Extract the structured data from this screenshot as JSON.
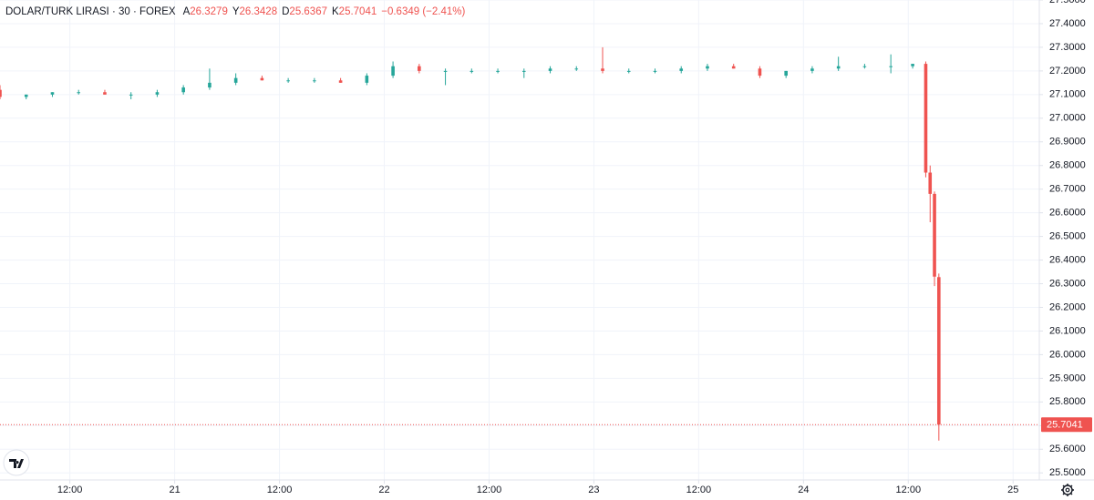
{
  "chart_data": {
    "type": "candlestick",
    "title": "DOLAR/TURK LIRASI · 30 · FOREX",
    "ohlc_legend": [
      {
        "label": "A",
        "value": 26.3279
      },
      {
        "label": "Y",
        "value": 26.3428
      },
      {
        "label": "D",
        "value": 25.6367
      },
      {
        "label": "K",
        "value": 25.7041
      }
    ],
    "change": "−0.6349 (−2.41%)",
    "up_color": "#26a69a",
    "down_color": "#ef5350",
    "x": [
      4,
      7,
      10,
      13,
      16,
      19,
      22,
      25,
      28,
      31,
      34,
      37,
      40,
      43,
      46,
      49,
      52,
      55,
      58,
      61,
      64,
      67,
      70,
      73,
      76,
      79,
      82,
      85,
      88,
      91,
      94,
      97,
      100,
      103,
      106,
      108.5,
      110,
      110.5,
      111,
      111.5
    ],
    "open": [
      27.12,
      27.09,
      27.1,
      27.11,
      27.11,
      27.1,
      27.1,
      27.11,
      27.13,
      27.15,
      27.17,
      27.16,
      27.16,
      27.16,
      27.15,
      27.18,
      27.22,
      27.2,
      27.2,
      27.2,
      27.2,
      27.2,
      27.21,
      27.21,
      27.2,
      27.2,
      27.2,
      27.21,
      27.22,
      27.21,
      27.18,
      27.2,
      27.21,
      27.22,
      27.22,
      27.22,
      27.23,
      26.77,
      26.68,
      26.3279
    ],
    "high": [
      27.14,
      27.1,
      27.11,
      27.12,
      27.12,
      27.11,
      27.12,
      27.14,
      27.21,
      27.19,
      27.18,
      27.17,
      27.17,
      27.17,
      27.19,
      27.24,
      27.23,
      27.21,
      27.21,
      27.21,
      27.21,
      27.22,
      27.22,
      27.3,
      27.21,
      27.21,
      27.22,
      27.23,
      27.23,
      27.22,
      27.2,
      27.22,
      27.26,
      27.23,
      27.27,
      27.23,
      27.24,
      26.8,
      26.69,
      26.3428
    ],
    "low": [
      27.08,
      27.08,
      27.09,
      27.1,
      27.1,
      27.08,
      27.09,
      27.1,
      27.12,
      27.14,
      27.16,
      27.15,
      27.15,
      27.15,
      27.14,
      27.17,
      27.19,
      27.14,
      27.19,
      27.19,
      27.17,
      27.19,
      27.2,
      27.19,
      27.19,
      27.19,
      27.19,
      27.2,
      27.21,
      27.17,
      27.17,
      27.19,
      27.2,
      27.21,
      27.19,
      27.21,
      26.75,
      26.56,
      26.29,
      25.6367
    ],
    "close": [
      27.09,
      27.1,
      27.11,
      27.11,
      27.1,
      27.1,
      27.11,
      27.13,
      27.15,
      27.17,
      27.16,
      27.16,
      27.16,
      27.15,
      27.18,
      27.22,
      27.2,
      27.2,
      27.2,
      27.2,
      27.2,
      27.21,
      27.21,
      27.2,
      27.2,
      27.2,
      27.21,
      27.22,
      27.21,
      27.18,
      27.2,
      27.21,
      27.22,
      27.22,
      27.22,
      27.23,
      26.77,
      26.68,
      26.33,
      25.7041
    ],
    "last_price": 25.7041,
    "xlim": [
      4,
      123
    ],
    "xticks": [
      {
        "value": 12,
        "label": "12:00"
      },
      {
        "value": 24,
        "label": "21"
      },
      {
        "value": 36,
        "label": "12:00"
      },
      {
        "value": 48,
        "label": "22"
      },
      {
        "value": 60,
        "label": "12:00"
      },
      {
        "value": 72,
        "label": "23"
      },
      {
        "value": 84,
        "label": "12:00"
      },
      {
        "value": 96,
        "label": "24"
      },
      {
        "value": 108,
        "label": "12:00"
      },
      {
        "value": 120,
        "label": "25"
      }
    ],
    "ylim": [
      25.47,
      27.5
    ],
    "yticks": [
      {
        "value": 25.5,
        "label": "25.5000"
      },
      {
        "value": 25.6,
        "label": "25.6000"
      },
      {
        "value": 25.7,
        "label": "25.7000"
      },
      {
        "value": 25.8,
        "label": "25.8000"
      },
      {
        "value": 25.9,
        "label": "25.9000"
      },
      {
        "value": 26.0,
        "label": "26.0000"
      },
      {
        "value": 26.1,
        "label": "26.1000"
      },
      {
        "value": 26.2,
        "label": "26.2000"
      },
      {
        "value": 26.3,
        "label": "26.3000"
      },
      {
        "value": 26.4,
        "label": "26.4000"
      },
      {
        "value": 26.5,
        "label": "26.5000"
      },
      {
        "value": 26.6,
        "label": "26.6000"
      },
      {
        "value": 26.7,
        "label": "26.7000"
      },
      {
        "value": 26.8,
        "label": "26.8000"
      },
      {
        "value": 26.9,
        "label": "26.9000"
      },
      {
        "value": 27.0,
        "label": "27.0000"
      },
      {
        "value": 27.1,
        "label": "27.1000"
      },
      {
        "value": 27.2,
        "label": "27.2000"
      },
      {
        "value": 27.3,
        "label": "27.3000"
      },
      {
        "value": 27.4,
        "label": "27.4000"
      },
      {
        "value": 27.5,
        "label": "27.5000"
      }
    ],
    "grid": true
  }
}
